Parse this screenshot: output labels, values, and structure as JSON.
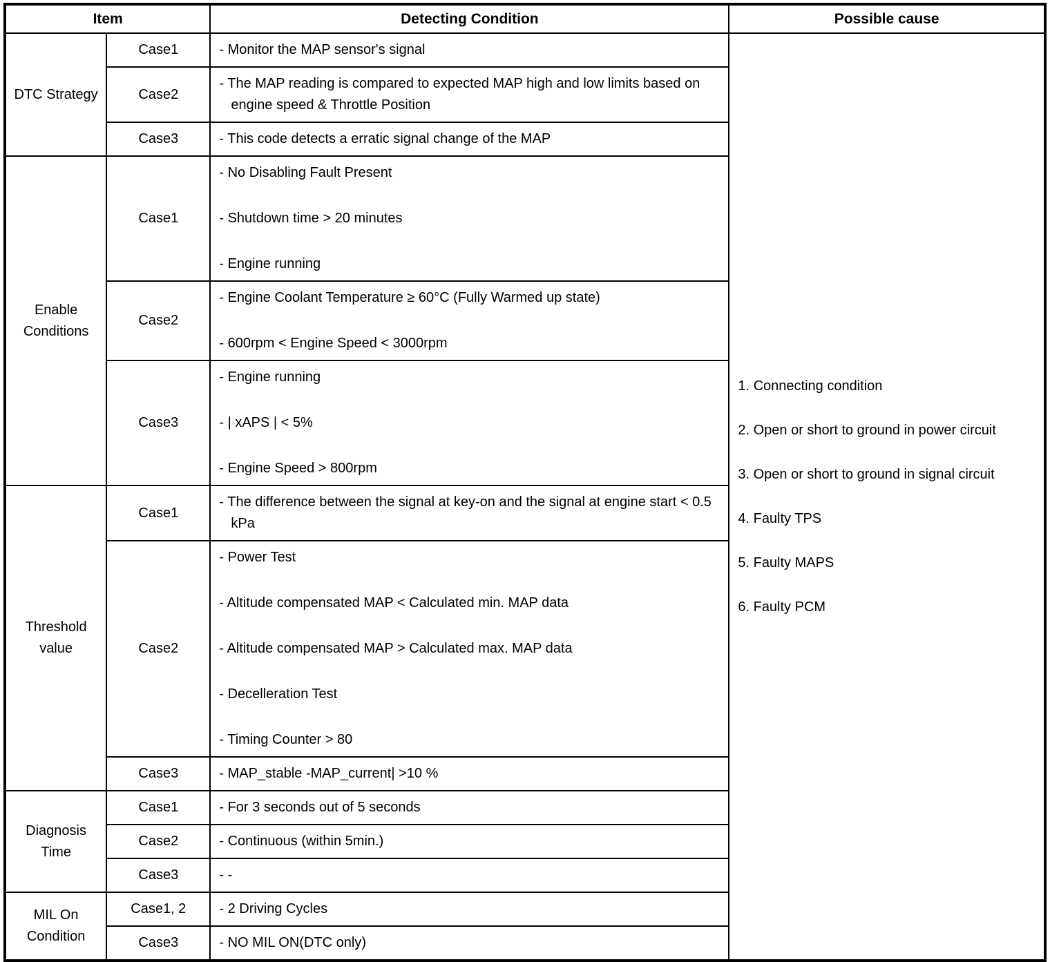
{
  "header": {
    "item": "Item",
    "detecting_condition": "Detecting Condition",
    "possible_cause": "Possible cause"
  },
  "groups": [
    {
      "label": "DTC Strategy",
      "cases": [
        {
          "label": "Case1",
          "bullets": [
            "- Monitor the MAP sensor's signal"
          ]
        },
        {
          "label": "Case2",
          "bullets": [
            "- The MAP reading is compared to expected MAP high and low limits based on engine speed & Throttle Position"
          ]
        },
        {
          "label": "Case3",
          "bullets": [
            "- This code detects a erratic signal change of the MAP"
          ]
        }
      ]
    },
    {
      "label": "Enable Conditions",
      "cases": [
        {
          "label": "Case1",
          "bullets": [
            "- No Disabling Fault Present",
            "- Shutdown time > 20 minutes",
            "- Engine running"
          ]
        },
        {
          "label": "Case2",
          "bullets": [
            "- Engine Coolant Temperature ≥ 60°C (Fully Warmed up state)",
            "- 600rpm < Engine Speed < 3000rpm"
          ]
        },
        {
          "label": "Case3",
          "bullets": [
            "- Engine running",
            "- | xAPS | < 5%",
            "- Engine Speed > 800rpm"
          ]
        }
      ]
    },
    {
      "label": "Threshold value",
      "cases": [
        {
          "label": "Case1",
          "bullets": [
            "- The difference between the signal at key-on and the signal at engine start < 0.5 kPa"
          ]
        },
        {
          "label": "Case2",
          "bullets": [
            "- Power Test",
            "- Altitude compensated MAP < Calculated min. MAP data",
            "- Altitude compensated MAP > Calculated max. MAP data",
            "- Decelleration Test",
            "- Timing Counter > 80"
          ]
        },
        {
          "label": "Case3",
          "bullets": [
            "- MAP_stable -MAP_current| >10 %"
          ]
        }
      ]
    },
    {
      "label": "Diagnosis Time",
      "cases": [
        {
          "label": "Case1",
          "bullets": [
            "- For 3 seconds out of 5 seconds"
          ]
        },
        {
          "label": "Case2",
          "bullets": [
            "- Continuous (within 5min.)"
          ]
        },
        {
          "label": "Case3",
          "bullets": [
            "- -"
          ]
        }
      ]
    },
    {
      "label": "MIL On Condition",
      "cases": [
        {
          "label": "Case1, 2",
          "bullets": [
            "- 2 Driving Cycles"
          ]
        },
        {
          "label": "Case3",
          "bullets": [
            "- NO MIL ON(DTC only)"
          ]
        }
      ]
    }
  ],
  "possible_cause": {
    "items": [
      "1. Connecting condition",
      "2. Open or short to ground in power circuit",
      "3. Open or short to ground in signal circuit",
      "4. Faulty TPS",
      "5. Faulty MAPS",
      "6. Faulty PCM"
    ]
  }
}
